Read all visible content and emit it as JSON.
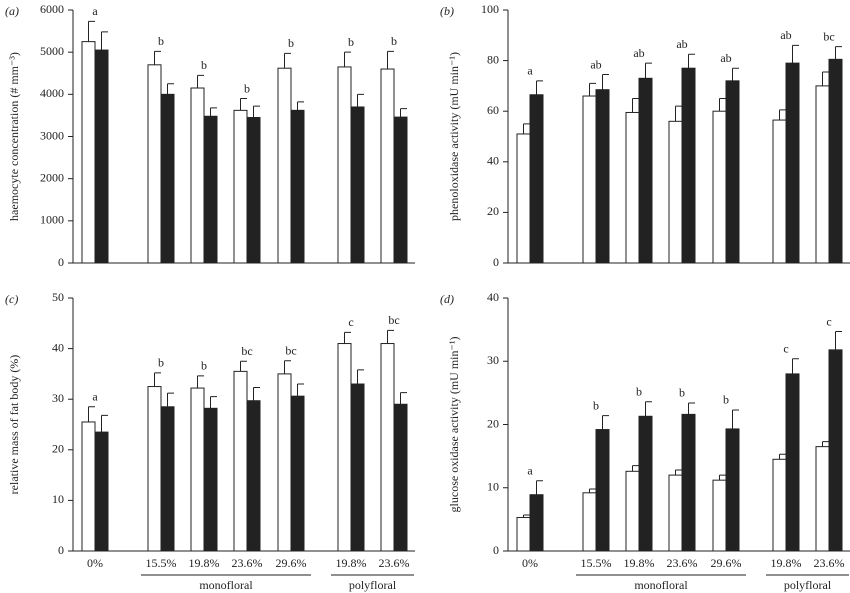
{
  "chart_data": [
    {
      "type": "bar",
      "panel_label": "(a)",
      "ylabel": "haemocyte concentration (# mm⁻³)",
      "ylim": [
        0,
        6000
      ],
      "yticks": [
        0,
        1000,
        2000,
        3000,
        4000,
        5000,
        6000
      ],
      "categories": [
        null,
        null,
        null,
        null,
        null,
        null,
        null
      ],
      "series": [
        {
          "color": "#ffffff",
          "values": [
            5250,
            4700,
            4150,
            3620,
            4620,
            4650,
            4600
          ],
          "errors": [
            480,
            320,
            300,
            280,
            350,
            350,
            420
          ]
        },
        {
          "color": "#222222",
          "values": [
            5050,
            4000,
            3480,
            3450,
            3620,
            3700,
            3460
          ],
          "errors": [
            430,
            250,
            200,
            270,
            200,
            300,
            200
          ]
        }
      ],
      "letters": [
        "a",
        "b",
        "b",
        "b",
        "b",
        "b",
        "b"
      ]
    },
    {
      "type": "bar",
      "panel_label": "(b)",
      "ylabel": "phenoloxidase activity (mU min⁻¹)",
      "ylim": [
        0,
        100
      ],
      "yticks": [
        0,
        20,
        40,
        60,
        80,
        100
      ],
      "categories": [
        null,
        null,
        null,
        null,
        null,
        null,
        null
      ],
      "series": [
        {
          "color": "#ffffff",
          "values": [
            51,
            66,
            59.5,
            56,
            60,
            56.5,
            70
          ],
          "errors": [
            4,
            5,
            5.5,
            6,
            5,
            4,
            5.5
          ]
        },
        {
          "color": "#222222",
          "values": [
            66.5,
            68.5,
            73,
            77,
            72,
            79,
            80.5
          ],
          "errors": [
            5.5,
            6,
            6,
            5.5,
            5,
            7,
            5
          ]
        }
      ],
      "letters": [
        "a",
        "ab",
        "ab",
        "ab",
        "ab",
        "ab",
        "bc"
      ]
    },
    {
      "type": "bar",
      "panel_label": "(c)",
      "ylabel": "relative mass of fat body (%)",
      "ylim": [
        0,
        50
      ],
      "yticks": [
        0,
        10,
        20,
        30,
        40,
        50
      ],
      "categories": [
        "0%",
        "15.5%",
        "19.8%",
        "23.6%",
        "29.6%",
        "19.8%",
        "23.6%"
      ],
      "group_labels": [
        "monofloral",
        "polyfloral"
      ],
      "series": [
        {
          "color": "#ffffff",
          "values": [
            25.5,
            32.5,
            32.2,
            35.5,
            35,
            41,
            41
          ],
          "errors": [
            3,
            2.7,
            2.4,
            2,
            2.6,
            2.2,
            2.6
          ]
        },
        {
          "color": "#222222",
          "values": [
            23.5,
            28.5,
            28.2,
            29.7,
            30.6,
            33,
            29
          ],
          "errors": [
            3.3,
            2.7,
            2.3,
            2.6,
            2.4,
            2.8,
            2.3
          ]
        }
      ],
      "letters": [
        "a",
        "b",
        "b",
        "bc",
        "bc",
        "c",
        "bc"
      ]
    },
    {
      "type": "bar",
      "panel_label": "(d)",
      "ylabel": "glucose oxidase activity (mU min⁻¹)",
      "ylim": [
        0,
        40
      ],
      "yticks": [
        0,
        10,
        20,
        30,
        40
      ],
      "categories": [
        "0%",
        "15.5%",
        "19.8%",
        "23.6%",
        "29.6%",
        "19.8%",
        "23.6%"
      ],
      "group_labels": [
        "monofloral",
        "polyfloral"
      ],
      "series": [
        {
          "color": "#ffffff",
          "values": [
            5.3,
            9.2,
            12.6,
            12,
            11.2,
            14.5,
            16.5
          ],
          "errors": [
            0.4,
            0.6,
            0.9,
            0.8,
            0.8,
            0.8,
            0.8
          ]
        },
        {
          "color": "#222222",
          "values": [
            8.9,
            19.2,
            21.3,
            21.6,
            19.3,
            28,
            31.8
          ],
          "errors": [
            2.2,
            2.2,
            2.3,
            1.8,
            3,
            2.4,
            2.9
          ]
        }
      ],
      "letters": [
        "a",
        "b",
        "b",
        "b",
        "b",
        "c",
        "c"
      ]
    }
  ]
}
